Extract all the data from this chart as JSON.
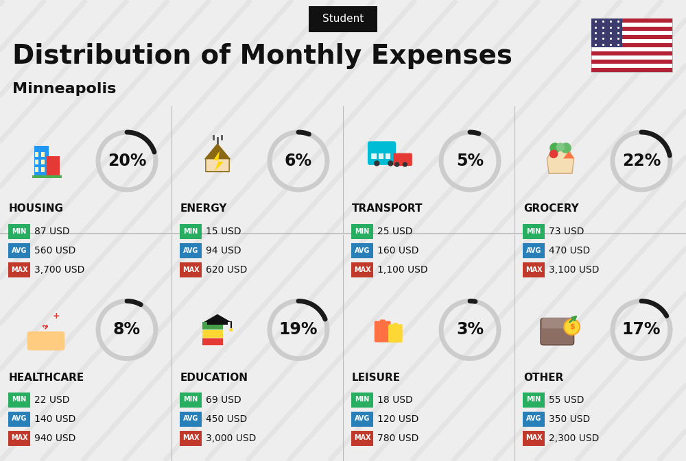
{
  "title": "Distribution of Monthly Expenses",
  "subtitle": "Minneapolis",
  "tag": "Student",
  "bg_color": "#eeeeee",
  "categories": [
    {
      "name": "HOUSING",
      "percent": 20,
      "min": "87 USD",
      "avg": "560 USD",
      "max": "3,700 USD",
      "row": 0,
      "col": 0
    },
    {
      "name": "ENERGY",
      "percent": 6,
      "min": "15 USD",
      "avg": "94 USD",
      "max": "620 USD",
      "row": 0,
      "col": 1
    },
    {
      "name": "TRANSPORT",
      "percent": 5,
      "min": "25 USD",
      "avg": "160 USD",
      "max": "1,100 USD",
      "row": 0,
      "col": 2
    },
    {
      "name": "GROCERY",
      "percent": 22,
      "min": "73 USD",
      "avg": "470 USD",
      "max": "3,100 USD",
      "row": 0,
      "col": 3
    },
    {
      "name": "HEALTHCARE",
      "percent": 8,
      "min": "22 USD",
      "avg": "140 USD",
      "max": "940 USD",
      "row": 1,
      "col": 0
    },
    {
      "name": "EDUCATION",
      "percent": 19,
      "min": "69 USD",
      "avg": "450 USD",
      "max": "3,000 USD",
      "row": 1,
      "col": 1
    },
    {
      "name": "LEISURE",
      "percent": 3,
      "min": "18 USD",
      "avg": "120 USD",
      "max": "780 USD",
      "row": 1,
      "col": 2
    },
    {
      "name": "OTHER",
      "percent": 17,
      "min": "55 USD",
      "avg": "350 USD",
      "max": "2,300 USD",
      "row": 1,
      "col": 3
    }
  ],
  "min_color": "#27ae60",
  "avg_color": "#2980b9",
  "max_color": "#c0392b",
  "arc_dark": "#1a1a1a",
  "arc_light": "#cccccc",
  "text_color": "#111111",
  "divider_color": "#bbbbbb",
  "stripe_color": "#d8d8d8",
  "tag_bg": "#111111",
  "tag_text": "#ffffff",
  "title_size": 28,
  "subtitle_size": 16,
  "cat_name_size": 11,
  "pct_size": 17,
  "label_size": 7,
  "val_size": 10
}
